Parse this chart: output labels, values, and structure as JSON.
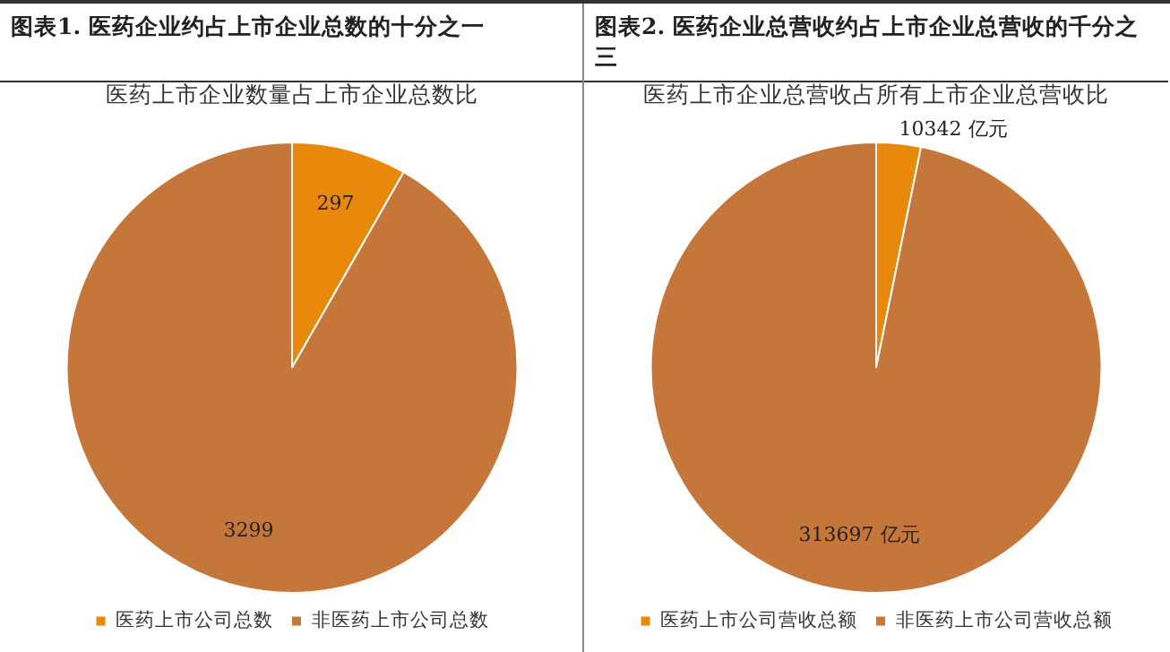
{
  "chart_data": [
    {
      "type": "pie",
      "title": "图表1.   医药企业约占上市企业总数的十分之一",
      "subtitle": "医药上市企业数量占上市企业总数比",
      "categories": [
        "医药上市公司总数",
        "非医药上市公司总数"
      ],
      "values": [
        297,
        3299
      ],
      "colors": [
        "#e8890c",
        "#c5763a"
      ],
      "data_labels": true,
      "legend": "bottom"
    },
    {
      "type": "pie",
      "title": "图表2.   医药企业总营收约占上市企业总营收的千分之三",
      "subtitle": "医药上市企业总营收占所有上市企业总营收比",
      "categories": [
        "医药上市公司营收总额",
        "非医药上市公司营收总额"
      ],
      "values": [
        10342,
        313697
      ],
      "colors": [
        "#e8890c",
        "#c5763a"
      ],
      "value_labels": [
        "10342 亿元",
        "313697 亿元"
      ],
      "legend": "bottom"
    }
  ]
}
